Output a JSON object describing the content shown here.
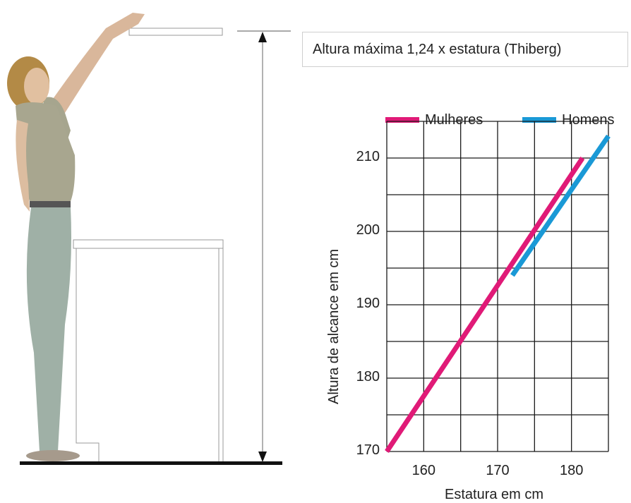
{
  "callout": {
    "text": "Altura máxima 1,24 x estatura (Thiberg)"
  },
  "colors": {
    "mulheres": "#e01a77",
    "homens": "#1a99d6",
    "grid": "#1a1a1a"
  },
  "chart_data": {
    "type": "line",
    "title": "",
    "xlabel": "Estatura em cm",
    "ylabel": "Altura de alcance em cm",
    "xlim": [
      155,
      185
    ],
    "ylim": [
      170,
      215
    ],
    "x_ticks": [
      "160",
      "170",
      "180"
    ],
    "y_ticks": [
      "170",
      "180",
      "190",
      "200",
      "210"
    ],
    "grid": true,
    "legend_position": "top",
    "series": [
      {
        "name": "Mulheres",
        "color": "#e01a77",
        "x": [
          155,
          181.5
        ],
        "y": [
          170,
          210
        ]
      },
      {
        "name": "Homens",
        "color": "#1a99d6",
        "x": [
          172,
          185
        ],
        "y": [
          194,
          213
        ]
      }
    ]
  }
}
